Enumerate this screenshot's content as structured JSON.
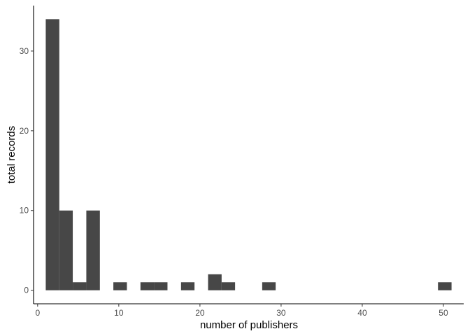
{
  "chart_data": {
    "type": "bar",
    "subtype": "histogram",
    "title": "",
    "xlabel": "number of publishers",
    "ylabel": "total records",
    "xlim": [
      -0.5,
      52.5
    ],
    "ylim": [
      -1.7,
      35.7
    ],
    "x_ticks": [
      0,
      10,
      20,
      30,
      40,
      50
    ],
    "y_ticks": [
      0,
      10,
      20,
      30
    ],
    "bar_color": "#474747",
    "grid": false,
    "legend": "none",
    "bins": [
      {
        "x0": 1.0,
        "x1": 2.67,
        "value": 34
      },
      {
        "x0": 2.67,
        "x1": 4.33,
        "value": 10
      },
      {
        "x0": 4.33,
        "x1": 6.0,
        "value": 1
      },
      {
        "x0": 6.0,
        "x1": 7.67,
        "value": 10
      },
      {
        "x0": 9.33,
        "x1": 11.0,
        "value": 1
      },
      {
        "x0": 12.67,
        "x1": 14.33,
        "value": 1
      },
      {
        "x0": 14.33,
        "x1": 16.0,
        "value": 1
      },
      {
        "x0": 17.67,
        "x1": 19.33,
        "value": 1
      },
      {
        "x0": 21.0,
        "x1": 22.67,
        "value": 2
      },
      {
        "x0": 22.67,
        "x1": 24.33,
        "value": 1
      },
      {
        "x0": 27.67,
        "x1": 29.33,
        "value": 1
      },
      {
        "x0": 49.33,
        "x1": 51.0,
        "value": 1
      }
    ]
  }
}
